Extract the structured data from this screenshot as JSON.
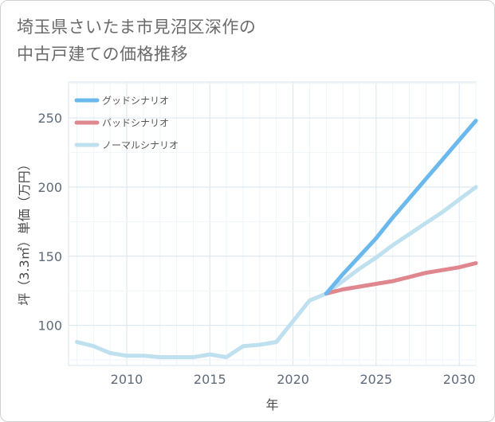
{
  "chart_data": {
    "type": "line",
    "title": "埼玉県さいたま市見沼区深作の中古戸建ての価格推移",
    "title_lines": [
      "埼玉県さいたま市見沼区深作の",
      "中古戸建ての価格推移"
    ],
    "xlabel": "年",
    "ylabel": "坪（3.3㎡）単価（万円）",
    "xlim": [
      2006.5,
      2031
    ],
    "ylim": [
      71,
      276
    ],
    "x_ticks": [
      2010,
      2015,
      2020,
      2025,
      2030
    ],
    "y_ticks": [
      100,
      150,
      200,
      250
    ],
    "legend_position": "top-left",
    "series": [
      {
        "name": "グッドシナリオ",
        "color": "#6ab8ec",
        "x": [
          2022,
          2023,
          2024,
          2025,
          2026,
          2027,
          2028,
          2029,
          2030,
          2031
        ],
        "values": [
          123,
          137,
          150,
          163,
          178,
          192,
          206,
          220,
          234,
          248
        ]
      },
      {
        "name": "バッドシナリオ",
        "color": "#e0868f",
        "x": [
          2022,
          2023,
          2024,
          2025,
          2026,
          2027,
          2028,
          2029,
          2030,
          2031
        ],
        "values": [
          123,
          126,
          128,
          130,
          132,
          135,
          138,
          140,
          142,
          145
        ]
      },
      {
        "name": "ノーマルシナリオ",
        "color": "#bfe0ee",
        "x": [
          2007,
          2008,
          2009,
          2010,
          2011,
          2012,
          2013,
          2014,
          2015,
          2016,
          2017,
          2018,
          2019,
          2020,
          2021,
          2022,
          2023,
          2024,
          2025,
          2026,
          2027,
          2028,
          2029,
          2030,
          2031
        ],
        "values": [
          88,
          85,
          80,
          78,
          78,
          77,
          77,
          77,
          79,
          77,
          85,
          86,
          88,
          103,
          118,
          123,
          132,
          141,
          149,
          158,
          166,
          174,
          182,
          191,
          200
        ]
      }
    ]
  }
}
